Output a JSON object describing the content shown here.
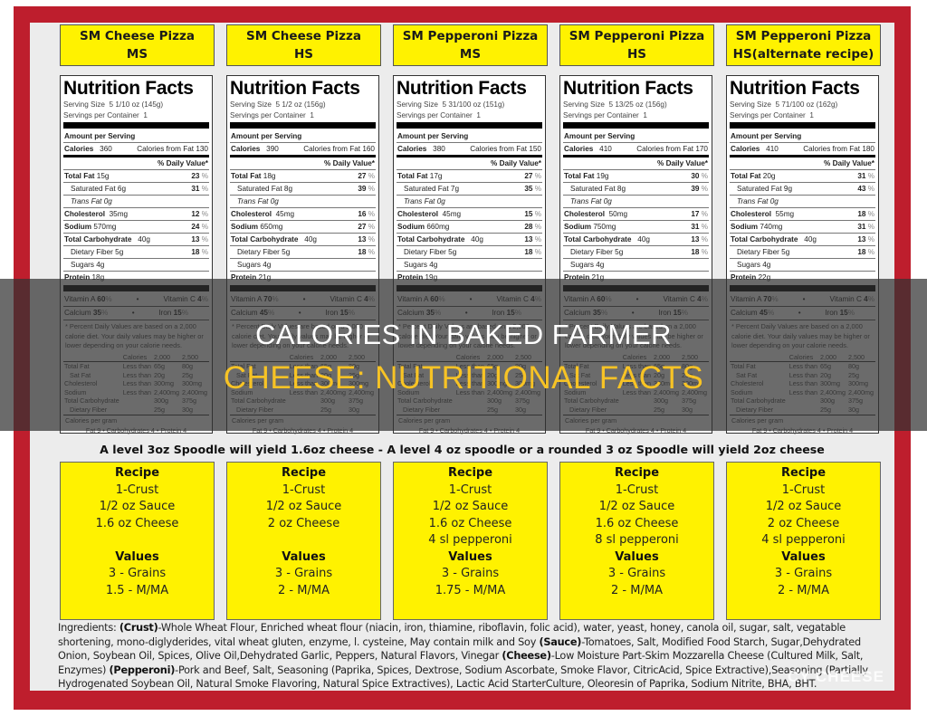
{
  "overlay": {
    "line1": "CALORIES IN BAKED FARMER",
    "line2": "CHEESE: NUTRITIONAL FACTS",
    "watermark": "CY CHEESE"
  },
  "labels": {
    "nutrition_facts": "Nutrition Facts",
    "serving_size": "Serving Size",
    "servings_per_container": "Servings per Container",
    "amount_per_serving": "Amount per Serving",
    "calories": "Calories",
    "calories_from_fat": "Calories from Fat",
    "daily_value": "% Daily Value*",
    "total_fat": "Total Fat",
    "saturated_fat": "Saturated Fat",
    "trans_fat": "Trans Fat 0g",
    "cholesterol": "Cholesterol",
    "sodium": "Sodium",
    "total_carbohydrate": "Total Carbohydrate",
    "dietary_fiber": "Dietary Fiber",
    "sugars": "Sugars",
    "protein": "Protein",
    "vitamin_a": "Vitamin A",
    "vitamin_c": "Vitamin C",
    "calcium": "Calcium",
    "iron": "Iron",
    "footnote": "* Percent Daily Values are based on a 2,000 calorie diet. Your daily values may be higher or lower depending on your calorie needs.",
    "dv_table": {
      "header": [
        "",
        "Calories",
        "2,000",
        "2,500"
      ],
      "rows": [
        [
          "Total Fat",
          "Less than",
          "65g",
          "80g"
        ],
        [
          "Sat Fat",
          "Less than",
          "20g",
          "25g"
        ],
        [
          "Cholesterol",
          "Less than",
          "300mg",
          "300mg"
        ],
        [
          "Sodium",
          "Less than",
          "2,400mg",
          "2,400mg"
        ],
        [
          "Total Carbohydrate",
          "",
          "300g",
          "375g"
        ],
        [
          "Dietary Fiber",
          "",
          "25g",
          "30g"
        ]
      ]
    },
    "calories_per_gram": "Calories per gram",
    "cpg_values": "Fat 9  •  Carbohydrates 4  •  Protein 4",
    "recipe_heading": "Recipe",
    "values_heading": "Values"
  },
  "yield_note": "A level 3oz Spoodle will yield 1.6oz cheese - A level 4 oz spoodle or a rounded 3 oz Spoodle will yield 2oz cheese",
  "products": [
    {
      "title1": "SM Cheese Pizza",
      "title2": "MS",
      "serving_size": "5 1/10 oz  (145g)",
      "servings": "1",
      "calories": "360",
      "calories_from_fat": "130",
      "total_fat": "15g",
      "total_fat_dv": "23",
      "sat_fat": "6g",
      "sat_fat_dv": "31",
      "cholesterol": "35mg",
      "cholesterol_dv": "12",
      "sodium": "570mg",
      "sodium_dv": "24",
      "carb": "40g",
      "carb_dv": "13",
      "fiber": "5g",
      "fiber_dv": "18",
      "sugars": "4g",
      "protein": "18g",
      "vit_a": "60",
      "vit_c": "4",
      "calcium": "35",
      "iron": "15",
      "recipe": [
        "1-Crust",
        "1/2 oz Sauce",
        "1.6 oz Cheese",
        ""
      ],
      "values": [
        "3 - Grains",
        "1.5 - M/MA"
      ]
    },
    {
      "title1": "SM Cheese Pizza",
      "title2": "HS",
      "serving_size": "5 1/2 oz  (156g)",
      "servings": "1",
      "calories": "390",
      "calories_from_fat": "160",
      "total_fat": "18g",
      "total_fat_dv": "27",
      "sat_fat": "8g",
      "sat_fat_dv": "39",
      "cholesterol": "45mg",
      "cholesterol_dv": "16",
      "sodium": "650mg",
      "sodium_dv": "27",
      "carb": "40g",
      "carb_dv": "13",
      "fiber": "5g",
      "fiber_dv": "18",
      "sugars": "4g",
      "protein": "21g",
      "vit_a": "70",
      "vit_c": "4",
      "calcium": "45",
      "iron": "15",
      "recipe": [
        "1-Crust",
        "1/2 oz Sauce",
        "2 oz Cheese",
        ""
      ],
      "values": [
        "3 - Grains",
        "2 - M/MA"
      ]
    },
    {
      "title1": "SM Pepperoni Pizza",
      "title2": "MS",
      "serving_size": "5 31/100 oz  (151g)",
      "servings": "1",
      "calories": "380",
      "calories_from_fat": "150",
      "total_fat": "17g",
      "total_fat_dv": "27",
      "sat_fat": "7g",
      "sat_fat_dv": "35",
      "cholesterol": "45mg",
      "cholesterol_dv": "15",
      "sodium": "660mg",
      "sodium_dv": "28",
      "carb": "40g",
      "carb_dv": "13",
      "fiber": "5g",
      "fiber_dv": "18",
      "sugars": "4g",
      "protein": "19g",
      "vit_a": "60",
      "vit_c": "4",
      "calcium": "35",
      "iron": "15",
      "recipe": [
        "1-Crust",
        "1/2 oz Sauce",
        "1.6 oz Cheese",
        "4 sl pepperoni"
      ],
      "values": [
        "3 - Grains",
        "1.75 - M/MA"
      ]
    },
    {
      "title1": "SM Pepperoni Pizza",
      "title2": "HS",
      "serving_size": "5 13/25 oz  (156g)",
      "servings": "1",
      "calories": "410",
      "calories_from_fat": "170",
      "total_fat": "19g",
      "total_fat_dv": "30",
      "sat_fat": "8g",
      "sat_fat_dv": "39",
      "cholesterol": "50mg",
      "cholesterol_dv": "17",
      "sodium": "750mg",
      "sodium_dv": "31",
      "carb": "40g",
      "carb_dv": "13",
      "fiber": "5g",
      "fiber_dv": "18",
      "sugars": "4g",
      "protein": "21g",
      "vit_a": "60",
      "vit_c": "4",
      "calcium": "35",
      "iron": "15",
      "recipe": [
        "1-Crust",
        "1/2 oz Sauce",
        "1.6 oz Cheese",
        "8 sl pepperoni"
      ],
      "values": [
        "3 - Grains",
        "2 -  M/MA"
      ]
    },
    {
      "title1": "SM Pepperoni Pizza",
      "title2": "HS(alternate recipe)",
      "serving_size": "5 71/100 oz  (162g)",
      "servings": "1",
      "calories": "410",
      "calories_from_fat": "180",
      "total_fat": "20g",
      "total_fat_dv": "31",
      "sat_fat": "9g",
      "sat_fat_dv": "43",
      "cholesterol": "55mg",
      "cholesterol_dv": "18",
      "sodium": "740mg",
      "sodium_dv": "31",
      "carb": "40g",
      "carb_dv": "13",
      "fiber": "5g",
      "fiber_dv": "18",
      "sugars": "4g",
      "protein": "22g",
      "vit_a": "70",
      "vit_c": "4",
      "calcium": "45",
      "iron": "15",
      "recipe": [
        "1-Crust",
        "1/2 oz Sauce",
        "2 oz Cheese",
        "4 sl pepperoni"
      ],
      "values": [
        "3 - Grains",
        "2 - M/MA"
      ]
    }
  ],
  "ingredients": {
    "prefix": "Ingredients:  ",
    "crust_label": "(Crust)",
    "crust": "-Whole Wheat Flour, Enriched wheat flour (niacin, iron, thiamine, riboflavin, folic acid), water, yeast, honey, canola oil, sugar, salt, vegatable shortening, mono-diglyderides, vital wheat gluten, enzyme, l. cysteine, May contain milk and Soy ",
    "sauce_label": "(Sauce)",
    "sauce": "-Tomatoes, Salt, Modified Food Starch, Sugar,Dehydrated Onion, Soybean Oil, Spices, Olive Oil,Dehydrated Garlic, Peppers, Natural Flavors, Vinegar ",
    "cheese_label": "(Cheese)",
    "cheese": "-Low Moisture Part-Skim Mozzarella Cheese (Cultured Milk, Salt, Enzymes) ",
    "pepperoni_label": "(Pepperoni)",
    "pepperoni": "-Pork and Beef, Salt, Seasoning (Paprika, Spices, Dextrose, Sodium Ascorbate, Smoke Flavor, CitricAcid, Spice Extractive),Seasoning (Partially Hydrogenated Soybean Oil, Natural Smoke Flavoring, Natural Spice Extractives), Lactic Acid StarterCulture, Oleoresin of Paprika, Sodium Nitrite, BHA, BHT."
  },
  "colors": {
    "frame_red": "#be1e2d",
    "label_yellow": "#fff200",
    "overlay_yellow": "#f7c325",
    "sheet_gray": "#ececec"
  }
}
